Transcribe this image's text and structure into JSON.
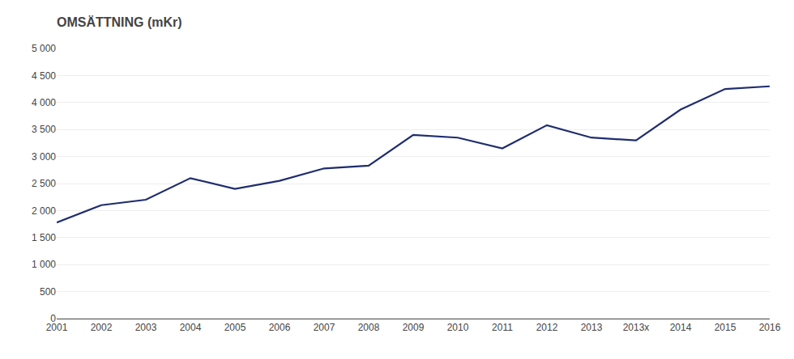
{
  "chart_data": {
    "type": "line",
    "title": "OMSÄTTNING (mKr)",
    "categories": [
      "2001",
      "2002",
      "2003",
      "2004",
      "2005",
      "2006",
      "2007",
      "2008",
      "2009",
      "2010",
      "2011",
      "2012",
      "2013",
      "2013x",
      "2014",
      "2015",
      "2016"
    ],
    "values": [
      1780,
      2100,
      2200,
      2600,
      2400,
      2550,
      2780,
      2830,
      3400,
      3350,
      3150,
      3580,
      3350,
      3300,
      3870,
      4250,
      4300
    ],
    "color": "#1f2d6e",
    "ylim": [
      0,
      5000
    ],
    "yticks": [
      0,
      500,
      {
        "value": 1000,
        "label": "1 000"
      },
      {
        "value": 1500,
        "label": "1 500"
      },
      {
        "value": 2000,
        "label": "2 000"
      },
      {
        "value": 2500,
        "label": "2 500"
      },
      {
        "value": 3000,
        "label": "3 000"
      },
      {
        "value": 3500,
        "label": "3 500"
      },
      {
        "value": 4000,
        "label": "4 000"
      },
      {
        "value": 4500,
        "label": "4 500"
      },
      {
        "value": 5000,
        "label": "5 000"
      }
    ],
    "grid": true
  }
}
